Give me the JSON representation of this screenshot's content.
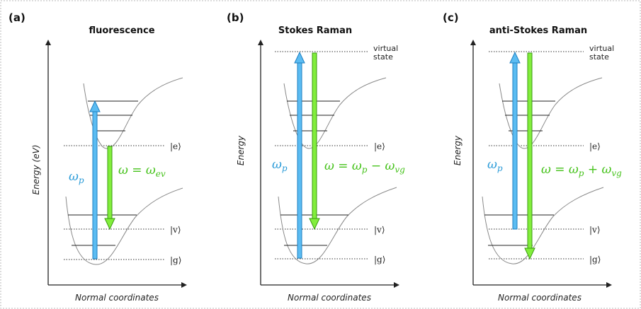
{
  "colors": {
    "pump": "#5bbcf2",
    "pump_stroke": "#1f7fc0",
    "emission": "#82ee3c",
    "emission_stroke": "#3a9a10",
    "pump_text": "#2a9bd8",
    "emission_text": "#45c21a"
  },
  "panels": [
    {
      "letter": "(a)",
      "title": "fluorescence",
      "y_axis_label": "Energy (eV)",
      "x_axis_label": "Normal coordinates",
      "state_e": "|e⟩",
      "state_v": "|v⟩",
      "state_g": "|g⟩",
      "pump_symbol": "ω",
      "pump_sub": "p",
      "emission": {
        "lhs": "ω = ω",
        "sub1": "ev",
        "op": "",
        "rhs": "",
        "sub2": ""
      }
    },
    {
      "letter": "(b)",
      "title": "Stokes Raman",
      "y_axis_label": "Energy",
      "x_axis_label": "Normal coordinates",
      "virtual_line1": "virtual",
      "virtual_line2": "state",
      "state_e": "|e⟩",
      "state_v": "|v⟩",
      "state_g": "|g⟩",
      "pump_symbol": "ω",
      "pump_sub": "p",
      "emission": {
        "lhs": "ω = ω",
        "sub1": "p",
        "op": " − ",
        "rhs": "ω",
        "sub2": "vg"
      }
    },
    {
      "letter": "(c)",
      "title": "anti-Stokes Raman",
      "y_axis_label": "Energy",
      "x_axis_label": "Normal coordinates",
      "virtual_line1": "virtual",
      "virtual_line2": "state",
      "state_e": "|e⟩",
      "state_v": "|v⟩",
      "state_g": "|g⟩",
      "pump_symbol": "ω",
      "pump_sub": "p",
      "emission": {
        "lhs": "ω = ω",
        "sub1": "p",
        "op": " + ",
        "rhs": "ω",
        "sub2": "vg"
      }
    }
  ]
}
